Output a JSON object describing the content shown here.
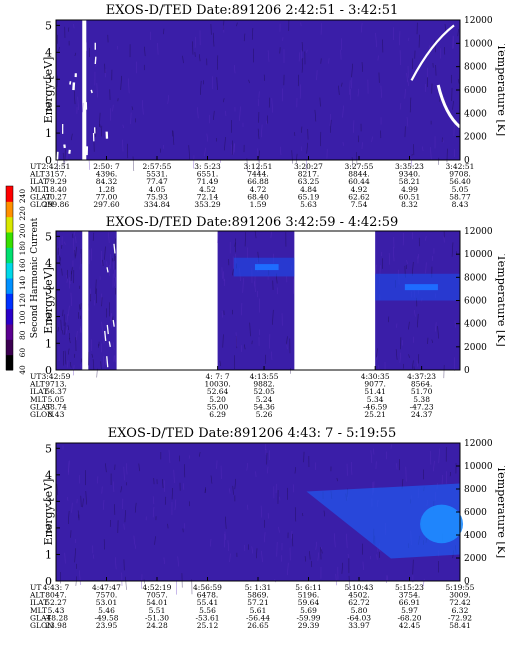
{
  "chart_data": [
    {
      "type": "heatmap",
      "title": "EXOS-D/TED   Date:891206  2:42:51 - 3:42:51",
      "ylabel": "Energy [eV]",
      "y2label": "Temperature [K]",
      "yticks": [
        "0",
        "1",
        "2",
        "3",
        "4",
        "5"
      ],
      "y2ticks": [
        "0",
        "2000",
        "4000",
        "6000",
        "8000",
        "10000",
        "12000"
      ],
      "ylim": [
        0,
        5.2
      ],
      "y2lim": [
        0,
        12000
      ],
      "row_labels": [
        "UT",
        "ALT",
        "ILAT",
        "MLT",
        "GLAT",
        "GLON"
      ],
      "columns": [
        [
          "2:42:51",
          "3157.",
          "79.29",
          "18.40",
          "70.27",
          "299.86"
        ],
        [
          "2:50: 7",
          "4396.",
          "84.32",
          "1.28",
          "77.00",
          "297.60"
        ],
        [
          "2:57:55",
          "5531.",
          "77.47",
          "4.05",
          "75.93",
          "334.84"
        ],
        [
          "3: 5:23",
          "6551.",
          "71.49",
          "4.52",
          "72.14",
          "353.29"
        ],
        [
          "3:12:51",
          "7444.",
          "66.88",
          "4.72",
          "68.40",
          "1.59"
        ],
        [
          "3:20:27",
          "8217.",
          "63.25",
          "4.84",
          "65.19",
          "5.63"
        ],
        [
          "3:27:55",
          "8844.",
          "60.44",
          "4.92",
          "62.62",
          "7.54"
        ],
        [
          "3:35:23",
          "9340.",
          "58.21",
          "4.99",
          "60.51",
          "8.32"
        ],
        [
          "3:42:51",
          "9708.",
          "56.40",
          "5.05",
          "58.77",
          "8.43"
        ]
      ],
      "tick_positions": [
        0,
        0.125,
        0.25,
        0.375,
        0.5,
        0.625,
        0.75,
        0.875,
        1
      ],
      "data_gaps": [
        [
          0.065,
          0.075
        ]
      ],
      "features": [
        {
          "type": "white-streaks",
          "t_range": [
            0.0,
            0.13
          ],
          "energy_range": [
            0.3,
            4.6
          ]
        },
        {
          "type": "white-arc",
          "t_range": [
            0.88,
            1.0
          ],
          "energy_range": [
            1.3,
            5.0
          ]
        }
      ]
    },
    {
      "type": "heatmap",
      "title": "EXOS-D/TED   Date:891206  3:42:59 - 4:42:59",
      "ylabel": "Energy [eV]",
      "y2label": "Temperature [K]",
      "yticks": [
        "0",
        "1",
        "2",
        "3",
        "4",
        "5"
      ],
      "y2ticks": [
        "0",
        "2000",
        "4000",
        "6000",
        "8000",
        "10000",
        "12000"
      ],
      "ylim": [
        0,
        5.2
      ],
      "y2lim": [
        0,
        12000
      ],
      "row_labels": [
        "UT",
        "ALT",
        "ILAT",
        "MLT",
        "GLAT",
        "GLON"
      ],
      "columns": [
        [
          "3:42:59",
          "9713.",
          "56.37",
          "5.05",
          "58.74",
          "8.43"
        ],
        [
          "4: 7: 7",
          "10030.",
          "52.64",
          "5.20",
          "55.00",
          "6.29"
        ],
        [
          "4:13:55",
          "9882.",
          "52.05",
          "5.24",
          "54.36",
          "5.26"
        ],
        [
          "4:30:35",
          "9077.",
          "51.41",
          "5.34",
          "-46.59",
          "25.21"
        ],
        [
          "4:37:23",
          "8564.",
          "51.70",
          "5.38",
          "-47.23",
          "24.37"
        ]
      ],
      "tick_positions": [
        0,
        0.4,
        0.515,
        0.79,
        0.905
      ],
      "data_segments": [
        [
          0.0,
          0.065
        ],
        [
          0.08,
          0.15
        ],
        [
          0.4,
          0.59
        ],
        [
          0.79,
          1.0
        ]
      ],
      "features": [
        {
          "type": "white-streak",
          "t_range": [
            0.08,
            0.15
          ],
          "energy_range": [
            0.3,
            4.8
          ]
        },
        {
          "type": "blue-band",
          "t_range": [
            0.44,
            0.59
          ],
          "energy_range": [
            3.5,
            4.2
          ]
        },
        {
          "type": "blue-band",
          "t_range": [
            0.79,
            1.0
          ],
          "energy_range": [
            2.6,
            3.6
          ]
        }
      ]
    },
    {
      "type": "heatmap",
      "title": "EXOS-D/TED   Date:891206  4:43: 7 - 5:19:55",
      "ylabel": "Energy [eV]",
      "y2label": "Temperature [K]",
      "yticks": [
        "0",
        "1",
        "2",
        "3",
        "4",
        "5"
      ],
      "y2ticks": [
        "0",
        "2000",
        "4000",
        "6000",
        "8000",
        "10000",
        "12000"
      ],
      "ylim": [
        0,
        5.2
      ],
      "y2lim": [
        0,
        12000
      ],
      "row_labels": [
        "UT",
        "ALT",
        "ILAT",
        "MLT",
        "GLAT",
        "GLON"
      ],
      "columns": [
        [
          "4:43: 7",
          "8047.",
          "52.27",
          "5.43",
          "-48.28",
          "23.98"
        ],
        [
          "4:47:47",
          "7570.",
          "53.01",
          "5.46",
          "-49.58",
          "23.95"
        ],
        [
          "4:52:19",
          "7057.",
          "54.01",
          "5.51",
          "-51.30",
          "24.28"
        ],
        [
          "4:56:59",
          "6478.",
          "55.41",
          "5.56",
          "-53.61",
          "25.12"
        ],
        [
          "5: 1:31",
          "5869.",
          "57.21",
          "5.61",
          "-56.44",
          "26.65"
        ],
        [
          "5: 6:11",
          "5196.",
          "59.64",
          "5.69",
          "-59.99",
          "29.39"
        ],
        [
          "5:10:43",
          "4502.",
          "62.72",
          "5.80",
          "-64.03",
          "33.97"
        ],
        [
          "5:15:23",
          "3754.",
          "66.91",
          "5.97",
          "-68.20",
          "42.45"
        ],
        [
          "5:19:55",
          "3009.",
          "72.42",
          "6.32",
          "-72.92",
          "58.41"
        ]
      ],
      "tick_positions": [
        0,
        0.125,
        0.25,
        0.375,
        0.5,
        0.625,
        0.75,
        0.875,
        1
      ],
      "features": [
        {
          "type": "blue-enhancement",
          "t_range": [
            0.62,
            1.0
          ],
          "energy_range": [
            1.0,
            3.6
          ]
        }
      ]
    }
  ],
  "colorbar": {
    "label": "Second Harmonic Current",
    "ticks": [
      "40",
      "60",
      "80",
      "100",
      "120",
      "140",
      "160",
      "180",
      "200",
      "220",
      "240"
    ],
    "colors": [
      "#000000",
      "#3b0050",
      "#5a0090",
      "#2a00c8",
      "#0030ff",
      "#0090ff",
      "#00d8e8",
      "#00e070",
      "#38e000",
      "#d8e800",
      "#ff9000",
      "#ff0000"
    ]
  }
}
